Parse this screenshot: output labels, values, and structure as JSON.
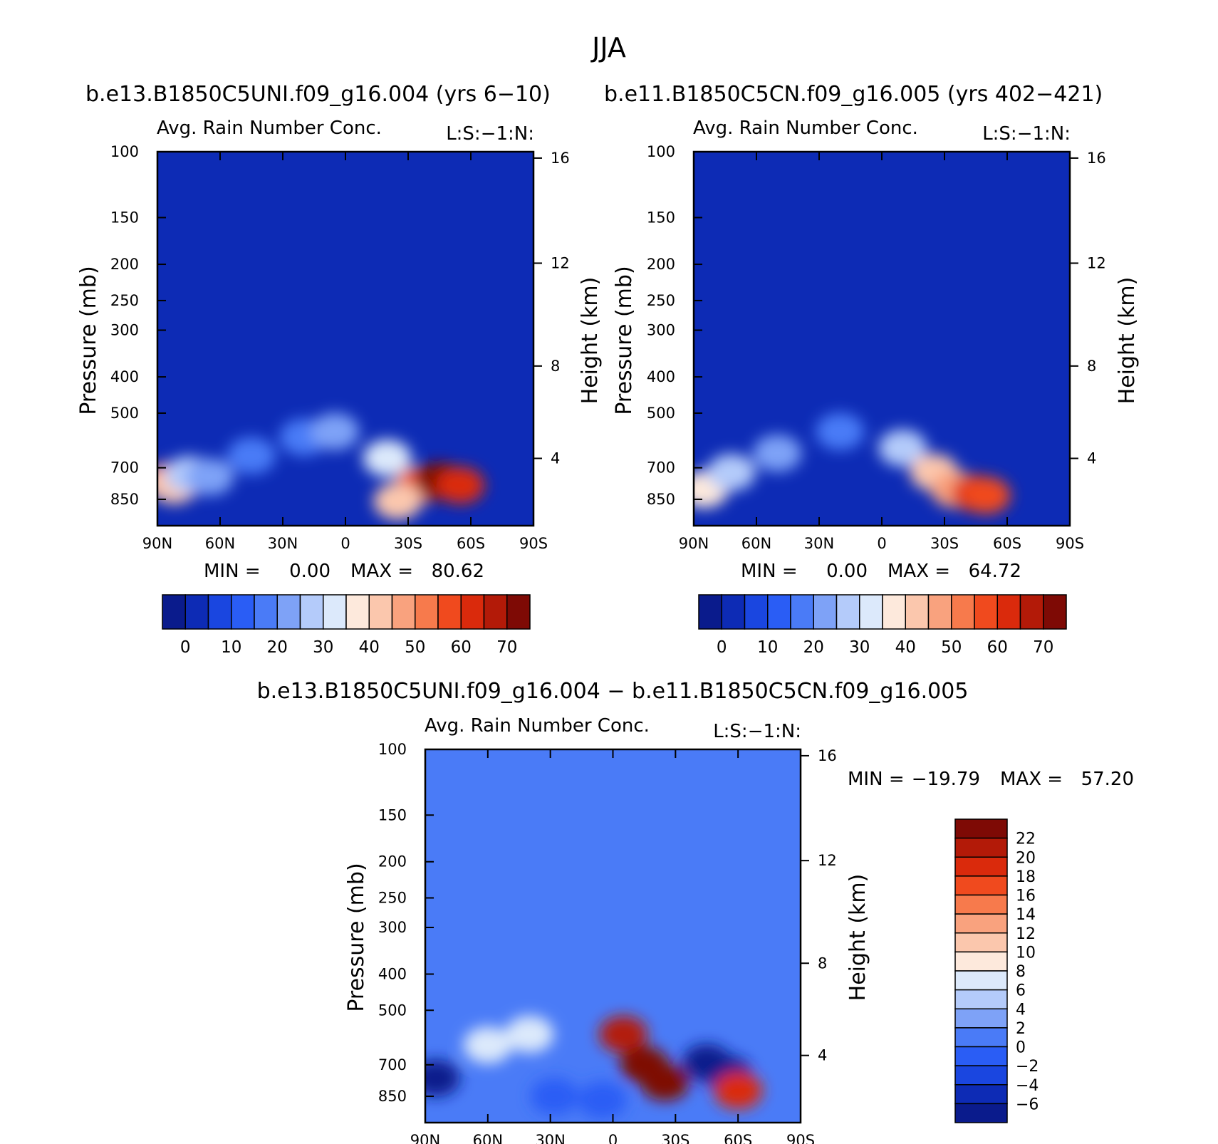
{
  "figure": {
    "title": "JJA"
  },
  "chart_data": [
    {
      "type": "heatmap",
      "id": "case1",
      "case_title": "b.e13.B1850C5UNI.f09_g16.004 (yrs 6−10)",
      "title": "Avg. Rain Number Conc.",
      "right_label": "L:S:−1:N:",
      "ylabel": "Pressure (mb)",
      "y2label": "Height (km)",
      "x_ticks": [
        "90N",
        "60N",
        "30N",
        "0",
        "30S",
        "60S",
        "90S"
      ],
      "y_ticks": [
        "100",
        "150",
        "200",
        "250",
        "300",
        "400",
        "500",
        "700",
        "850"
      ],
      "y_tick_values": [
        100,
        150,
        200,
        250,
        300,
        400,
        500,
        700,
        850
      ],
      "y2_ticks": [
        "16",
        "12",
        "8",
        "4"
      ],
      "ylim": [
        100,
        1000
      ],
      "xlim": [
        90,
        -90
      ],
      "stats": {
        "min_label": "MIN =",
        "min_value": "0.00",
        "max_label": "MAX =",
        "max_value": "80.62"
      },
      "colorbar": {
        "orientation": "horizontal",
        "labels": [
          "0",
          "10",
          "20",
          "30",
          "40",
          "50",
          "60",
          "70"
        ],
        "colors": [
          "#0a1b8c",
          "#0d2bb5",
          "#1a46e0",
          "#2a5df5",
          "#4a7bf7",
          "#7ea2f7",
          "#b4cbfa",
          "#dce9fb",
          "#fde9dc",
          "#fbc7ad",
          "#f9a27e",
          "#f77a4c",
          "#f04a1e",
          "#da2a0c",
          "#b31a08",
          "#7e0a05"
        ],
        "background_color": "#0d2bb5"
      },
      "features": [
        {
          "lat": 85,
          "p": 760,
          "level": 11
        },
        {
          "lat": 82,
          "p": 780,
          "level": 9
        },
        {
          "lat": 75,
          "p": 730,
          "level": 6
        },
        {
          "lat": 65,
          "p": 740,
          "level": 5
        },
        {
          "lat": 45,
          "p": 650,
          "level": 4
        },
        {
          "lat": 20,
          "p": 580,
          "level": 4
        },
        {
          "lat": 5,
          "p": 560,
          "level": 5
        },
        {
          "lat": -20,
          "p": 660,
          "level": 7
        },
        {
          "lat": -35,
          "p": 780,
          "level": 12
        },
        {
          "lat": -45,
          "p": 760,
          "level": 15
        },
        {
          "lat": -55,
          "p": 780,
          "level": 13
        },
        {
          "lat": -25,
          "p": 860,
          "level": 9
        }
      ]
    },
    {
      "type": "heatmap",
      "id": "case2",
      "case_title": "b.e11.B1850C5CN.f09_g16.005 (yrs 402−421)",
      "title": "Avg. Rain Number Conc.",
      "right_label": "L:S:−1:N:",
      "ylabel": "Pressure (mb)",
      "y2label": "Height (km)",
      "x_ticks": [
        "90N",
        "60N",
        "30N",
        "0",
        "30S",
        "60S",
        "90S"
      ],
      "y_ticks": [
        "100",
        "150",
        "200",
        "250",
        "300",
        "400",
        "500",
        "700",
        "850"
      ],
      "y_tick_values": [
        100,
        150,
        200,
        250,
        300,
        400,
        500,
        700,
        850
      ],
      "y2_ticks": [
        "16",
        "12",
        "8",
        "4"
      ],
      "ylim": [
        100,
        1000
      ],
      "xlim": [
        90,
        -90
      ],
      "stats": {
        "min_label": "MIN =",
        "min_value": "0.00",
        "max_label": "MAX =",
        "max_value": "64.72"
      },
      "colorbar": {
        "orientation": "horizontal",
        "labels": [
          "0",
          "10",
          "20",
          "30",
          "40",
          "50",
          "60",
          "70"
        ],
        "colors": [
          "#0a1b8c",
          "#0d2bb5",
          "#1a46e0",
          "#2a5df5",
          "#4a7bf7",
          "#7ea2f7",
          "#b4cbfa",
          "#dce9fb",
          "#fde9dc",
          "#fbc7ad",
          "#f9a27e",
          "#f77a4c",
          "#f04a1e",
          "#da2a0c",
          "#b31a08",
          "#7e0a05"
        ],
        "background_color": "#0d2bb5"
      },
      "features": [
        {
          "lat": 85,
          "p": 800,
          "level": 8
        },
        {
          "lat": 72,
          "p": 720,
          "level": 6
        },
        {
          "lat": 50,
          "p": 640,
          "level": 5
        },
        {
          "lat": 20,
          "p": 560,
          "level": 4
        },
        {
          "lat": -10,
          "p": 620,
          "level": 6
        },
        {
          "lat": -25,
          "p": 720,
          "level": 9
        },
        {
          "lat": -35,
          "p": 800,
          "level": 10
        },
        {
          "lat": -45,
          "p": 820,
          "level": 13
        },
        {
          "lat": -50,
          "p": 830,
          "level": 12
        }
      ]
    },
    {
      "type": "heatmap",
      "id": "diff",
      "case_title": "b.e13.B1850C5UNI.f09_g16.004 − b.e11.B1850C5CN.f09_g16.005",
      "title": "Avg. Rain Number Conc.",
      "right_label": "L:S:−1:N:",
      "ylabel": "Pressure (mb)",
      "y2label": "Height (km)",
      "x_ticks": [
        "90N",
        "60N",
        "30N",
        "0",
        "30S",
        "60S",
        "90S"
      ],
      "y_ticks": [
        "100",
        "150",
        "200",
        "250",
        "300",
        "400",
        "500",
        "700",
        "850"
      ],
      "y_tick_values": [
        100,
        150,
        200,
        250,
        300,
        400,
        500,
        700,
        850
      ],
      "y2_ticks": [
        "16",
        "12",
        "8",
        "4"
      ],
      "ylim": [
        100,
        1000
      ],
      "xlim": [
        90,
        -90
      ],
      "stats": {
        "min_label": "MIN =",
        "min_value": "−19.79",
        "max_label": "MAX =",
        "max_value": "57.20"
      },
      "colorbar": {
        "orientation": "vertical",
        "labels": [
          "22",
          "20",
          "18",
          "16",
          "14",
          "12",
          "10",
          "8",
          "6",
          "4",
          "2",
          "0",
          "−2",
          "−4",
          "−6"
        ],
        "colors": [
          "#7e0a05",
          "#b31a08",
          "#da2a0c",
          "#f04a1e",
          "#f77a4c",
          "#f9a27e",
          "#fbc7ad",
          "#fde9dc",
          "#dce9fb",
          "#b4cbfa",
          "#7ea2f7",
          "#4a7bf7",
          "#2a5df5",
          "#1a46e0",
          "#0d2bb5",
          "#0a1b8c"
        ],
        "background_color": "#4a7bf7"
      },
      "features": [
        {
          "lat": 85,
          "p": 760,
          "level": 15
        },
        {
          "lat": 60,
          "p": 620,
          "level": 8
        },
        {
          "lat": 40,
          "p": 580,
          "level": 8
        },
        {
          "lat": 28,
          "p": 850,
          "level": 12
        },
        {
          "lat": 5,
          "p": 870,
          "level": 12
        },
        {
          "lat": -5,
          "p": 580,
          "level": 1
        },
        {
          "lat": -15,
          "p": 700,
          "level": 0
        },
        {
          "lat": -25,
          "p": 780,
          "level": 0
        },
        {
          "lat": -45,
          "p": 690,
          "level": 15
        },
        {
          "lat": -55,
          "p": 740,
          "level": 15
        },
        {
          "lat": -60,
          "p": 820,
          "level": 2
        }
      ]
    }
  ]
}
